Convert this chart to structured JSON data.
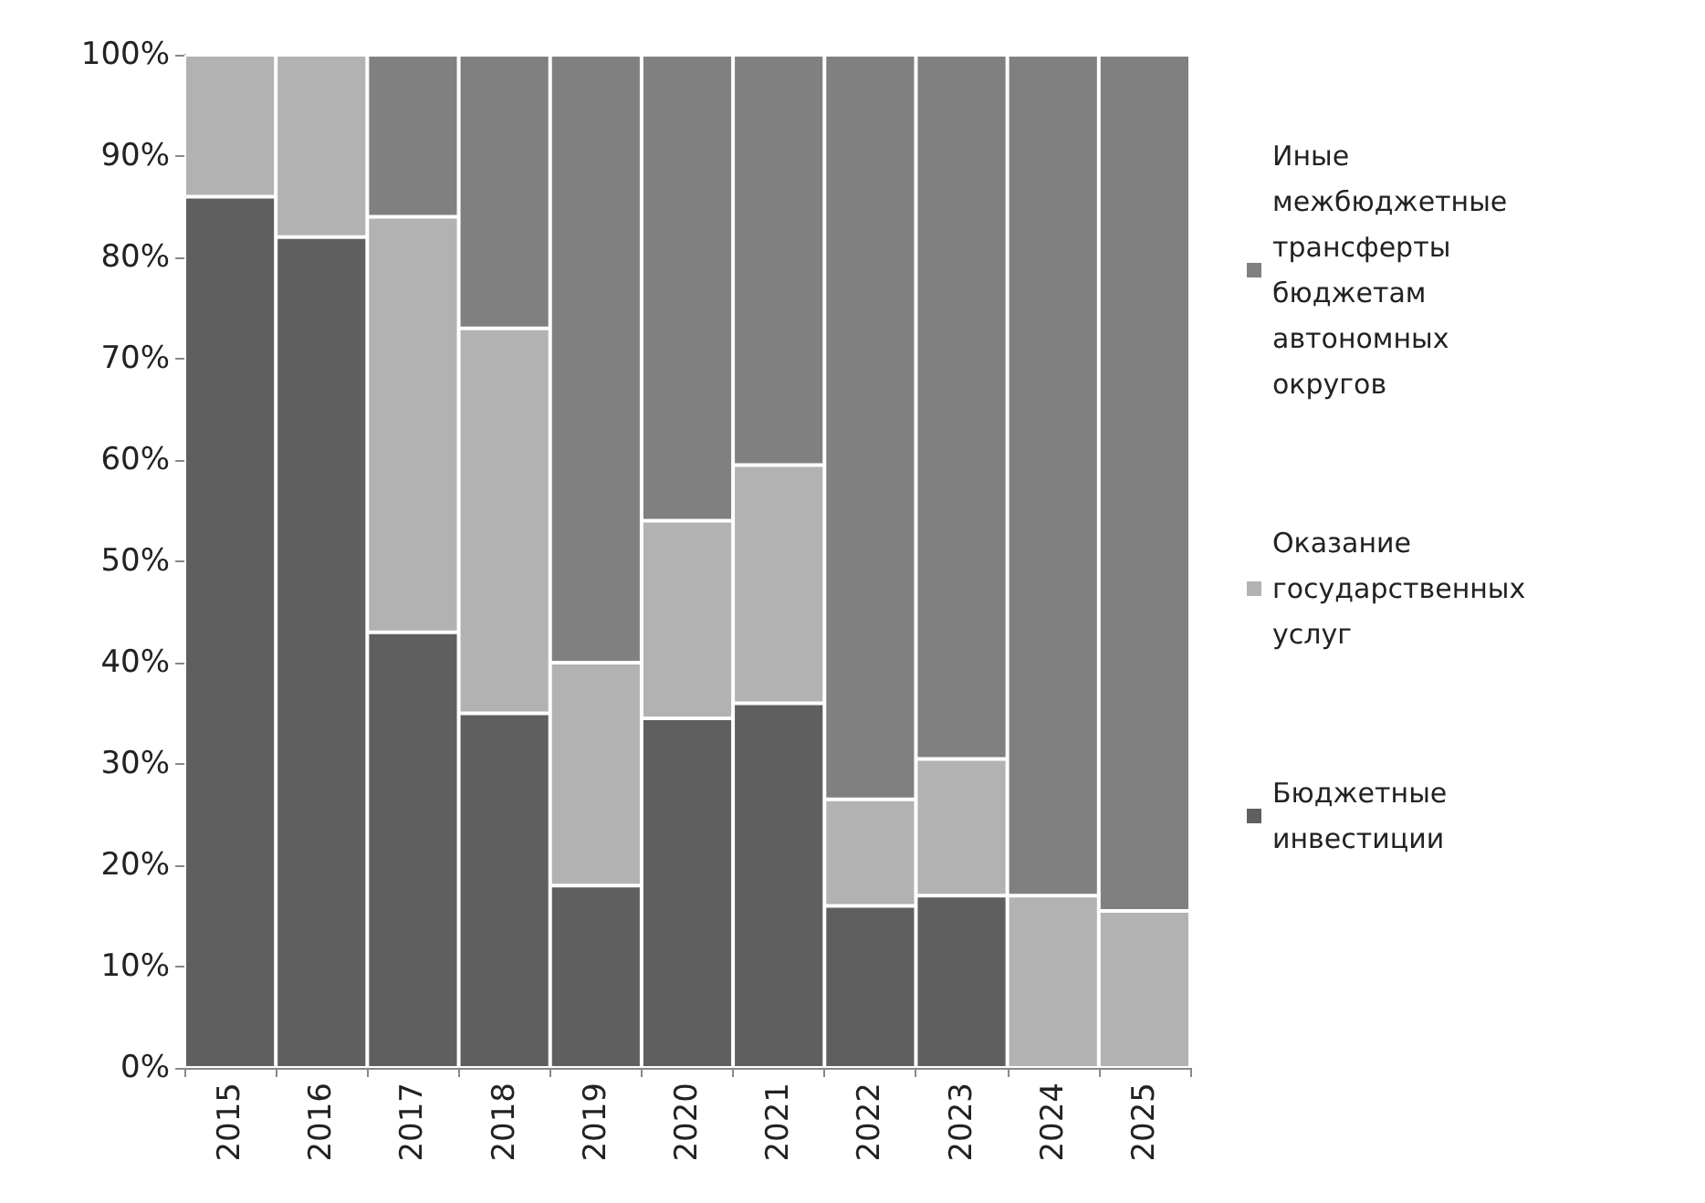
{
  "chart_data": {
    "type": "bar",
    "stacked": true,
    "categories": [
      "2015",
      "2016",
      "2017",
      "2018",
      "2019",
      "2020",
      "2021",
      "2022",
      "2023",
      "2024",
      "2025"
    ],
    "series": [
      {
        "name": "Бюджетные инвестиции",
        "color": "#5f5f5f",
        "values": [
          86,
          82,
          43,
          35,
          18,
          34.5,
          36,
          16,
          17,
          0,
          0
        ]
      },
      {
        "name": "Оказание государственных услуг",
        "color": "#b2b2b2",
        "values": [
          14,
          18,
          41,
          38,
          22,
          19.5,
          23.5,
          10.5,
          13.5,
          17,
          15.5
        ]
      },
      {
        "name": "Иные межбюджетные трансферты бюджетам автономных округов",
        "color": "#808080",
        "values": [
          0,
          0,
          16,
          27,
          60,
          46,
          40.5,
          73.5,
          69.5,
          83,
          84.5
        ]
      }
    ],
    "ylim": [
      0,
      100
    ],
    "yticks": [
      {
        "value": 0,
        "label": "0%"
      },
      {
        "value": 10,
        "label": "10%"
      },
      {
        "value": 20,
        "label": "20%"
      },
      {
        "value": 30,
        "label": "30%"
      },
      {
        "value": 40,
        "label": "40%"
      },
      {
        "value": 50,
        "label": "50%"
      },
      {
        "value": 60,
        "label": "60%"
      },
      {
        "value": 70,
        "label": "70%"
      },
      {
        "value": 80,
        "label": "80%"
      },
      {
        "value": 90,
        "label": "90%"
      },
      {
        "value": 100,
        "label": "100%"
      }
    ],
    "grid": false,
    "legend": "right"
  }
}
